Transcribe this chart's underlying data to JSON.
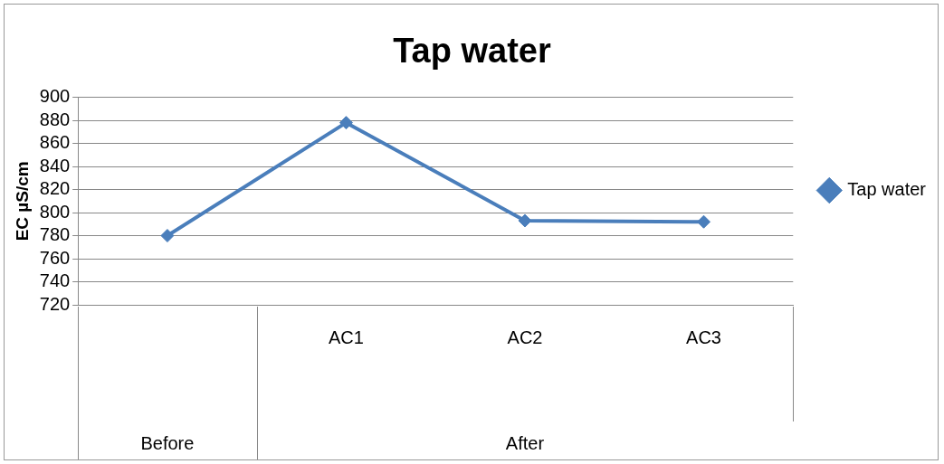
{
  "chart_data": {
    "type": "line",
    "title": "Tap water",
    "ylabel": "EC µS/cm",
    "categories": [
      null,
      "AC1",
      "AC2",
      "AC3"
    ],
    "series": [
      {
        "name": "Tap water",
        "color": "#4a7ebb",
        "values": [
          780,
          878,
          793,
          792
        ]
      }
    ],
    "annotations": [
      "Before",
      "After"
    ],
    "ylim": [
      720,
      900
    ],
    "yticks": [
      720,
      740,
      760,
      780,
      800,
      820,
      840,
      860,
      880,
      900
    ],
    "grid": "y",
    "legend": "right",
    "marker": "diamond",
    "line_style": "solid"
  }
}
